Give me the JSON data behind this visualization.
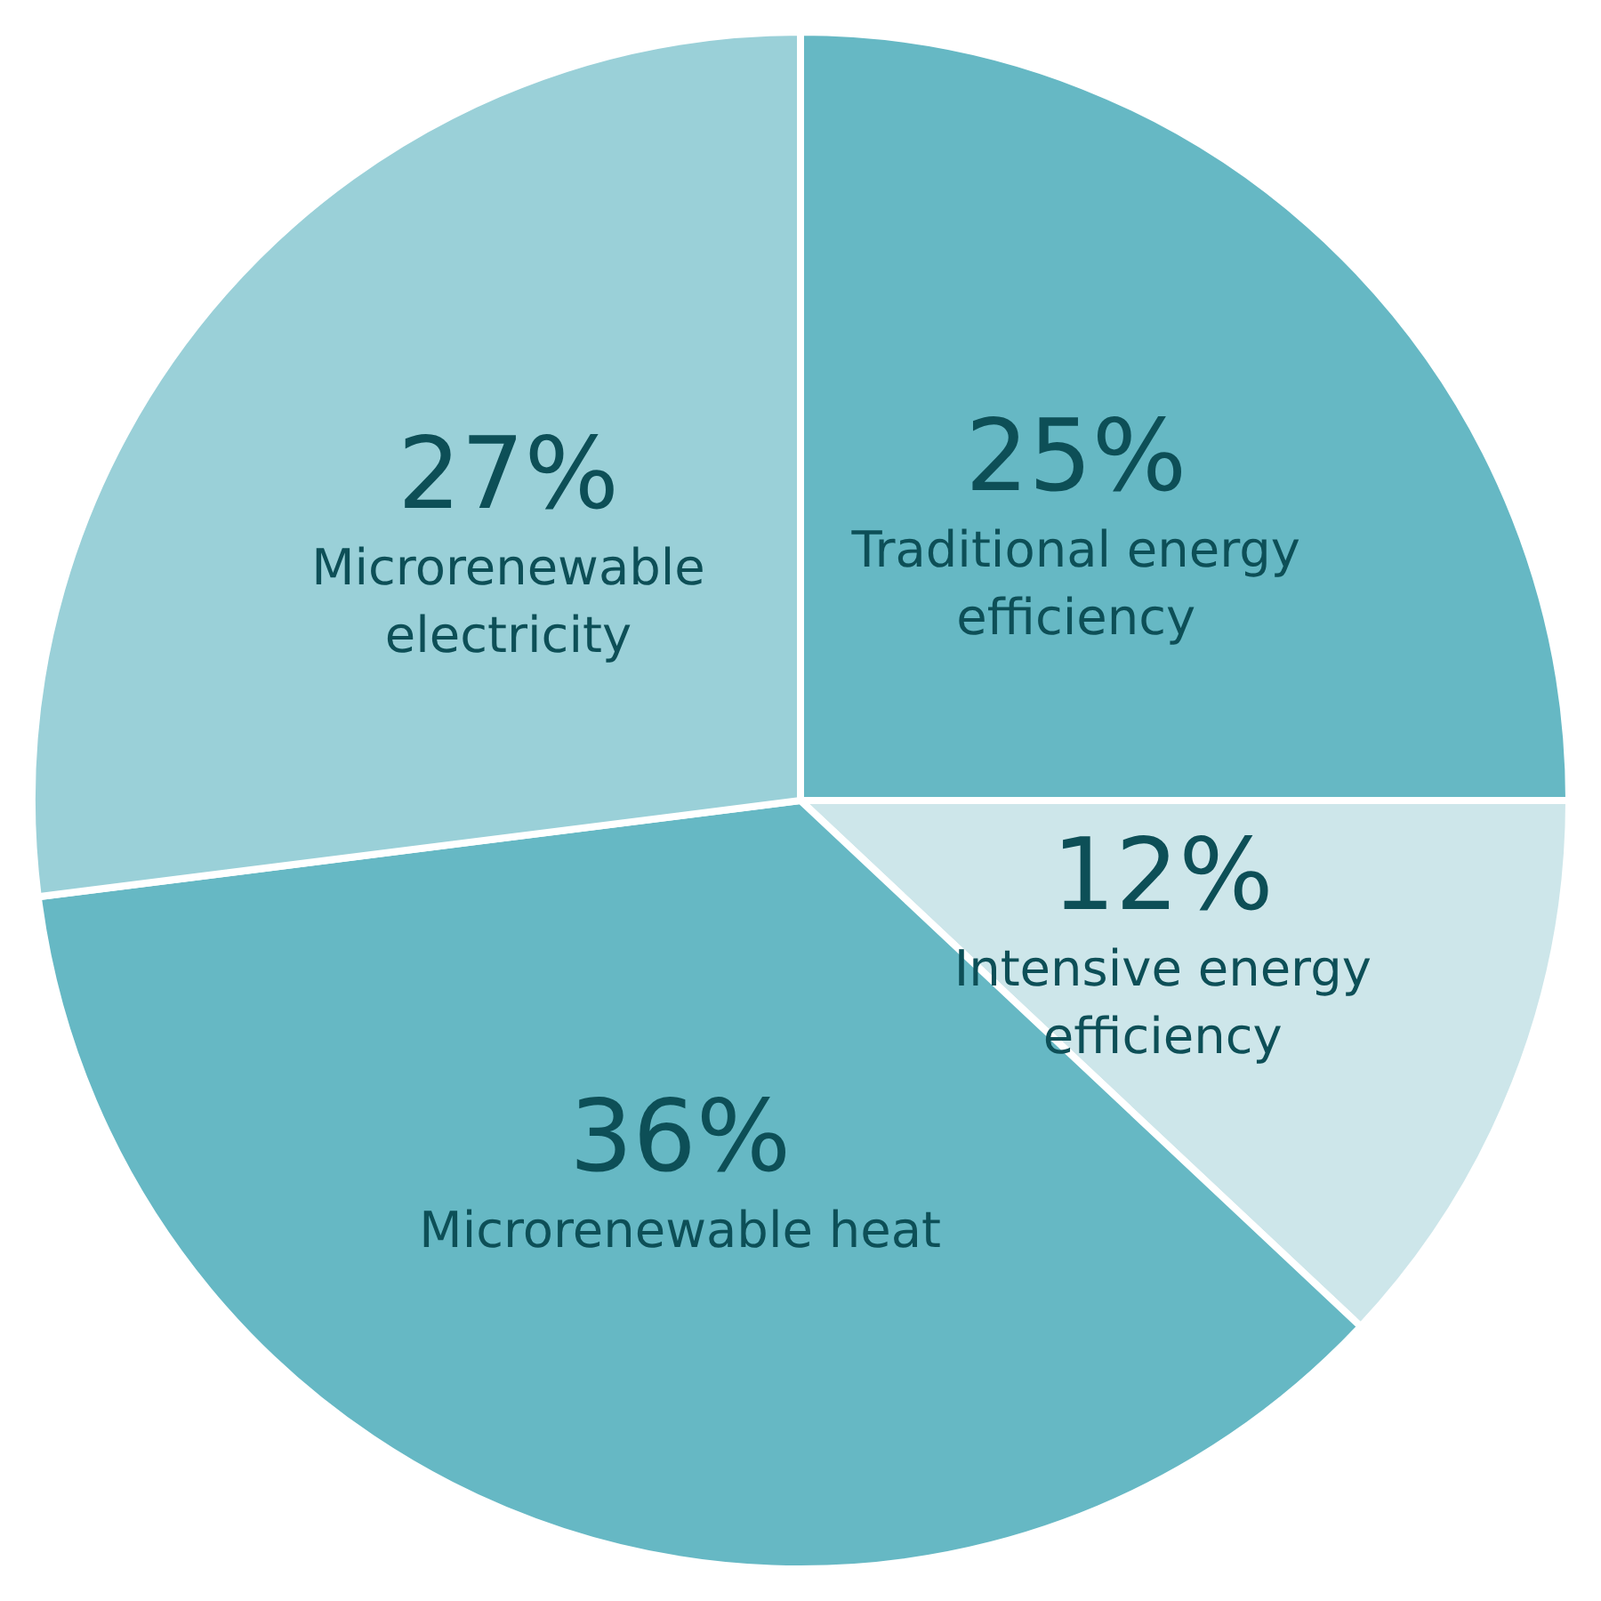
{
  "chart_data": {
    "type": "pie",
    "categories": [
      "Traditional energy efficiency",
      "Intensive energy efficiency",
      "Microrenewable heat",
      "Microrenewable electricity"
    ],
    "values": [
      25,
      12,
      36,
      27
    ],
    "value_labels": [
      "25%",
      "12%",
      "36%",
      "27%"
    ],
    "colors": [
      "#66b8c4",
      "#cde6ea",
      "#66b8c4",
      "#9ad0d8"
    ],
    "legend": false
  }
}
